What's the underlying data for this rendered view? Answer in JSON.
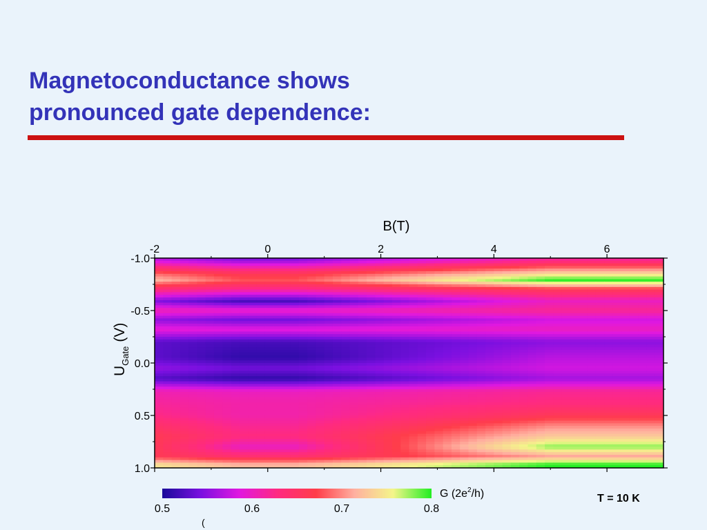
{
  "slide": {
    "title_line1": "Magnetoconductance shows",
    "title_line2": "pronounced gate dependence:",
    "annotation": "T = 10 K",
    "accent_color": "#cc1111",
    "title_color": "#3333b8"
  },
  "chart_data": {
    "type": "heatmap",
    "title": "",
    "xlabel": "B(T)",
    "ylabel_main": "U",
    "ylabel_sub": "Gate",
    "ylabel_unit": "(V)",
    "x_ticks": [
      -2,
      0,
      2,
      4,
      6
    ],
    "x_tick_labels": [
      "-2",
      "0",
      "2",
      "4",
      "6"
    ],
    "y_ticks": [
      -1.0,
      -0.5,
      0.0,
      0.5,
      1.0
    ],
    "y_tick_labels": [
      "-1.0",
      "-0.5",
      "0.0",
      "0.5",
      "1.0"
    ],
    "xlim": [
      -2,
      7
    ],
    "ylim": [
      -1.0,
      1.0
    ],
    "x_axis_position": "top",
    "y_inverted": true,
    "colorbar": {
      "label_main": "G (2e",
      "label_sup": "2",
      "label_end": "/h)",
      "range": [
        0.5,
        0.8
      ],
      "tick_values": [
        0.5,
        0.6,
        0.7,
        0.8
      ],
      "tick_labels": [
        "0.5",
        "0.6",
        "0.7",
        "0.8"
      ],
      "stray_mark": "(",
      "colors": [
        "#1a0a9a",
        "#7a10e0",
        "#e018e0",
        "#ff2a80",
        "#ff3d4a",
        "#ffb0a0",
        "#f4f58a",
        "#22ee22"
      ]
    },
    "bands": [
      {
        "y": -0.98,
        "g_low_field": 0.55,
        "g_high_field": 0.62
      },
      {
        "y": -0.85,
        "g_low_field": 0.66,
        "g_high_field": 0.74
      },
      {
        "y": -0.79,
        "g_low_field": 0.68,
        "g_high_field": 0.8
      },
      {
        "y": -0.7,
        "g_low_field": 0.62,
        "g_high_field": 0.66
      },
      {
        "y": -0.59,
        "g_low_field": 0.52,
        "g_high_field": 0.6
      },
      {
        "y": -0.5,
        "g_low_field": 0.6,
        "g_high_field": 0.62
      },
      {
        "y": -0.41,
        "g_low_field": 0.54,
        "g_high_field": 0.58
      },
      {
        "y": -0.32,
        "g_low_field": 0.59,
        "g_high_field": 0.6
      },
      {
        "y": -0.2,
        "g_low_field": 0.52,
        "g_high_field": 0.55
      },
      {
        "y": -0.05,
        "g_low_field": 0.51,
        "g_high_field": 0.57
      },
      {
        "y": 0.05,
        "g_low_field": 0.54,
        "g_high_field": 0.58
      },
      {
        "y": 0.15,
        "g_low_field": 0.51,
        "g_high_field": 0.56
      },
      {
        "y": 0.27,
        "g_low_field": 0.6,
        "g_high_field": 0.62
      },
      {
        "y": 0.38,
        "g_low_field": 0.61,
        "g_high_field": 0.63
      },
      {
        "y": 0.5,
        "g_low_field": 0.61,
        "g_high_field": 0.66
      },
      {
        "y": 0.6,
        "g_low_field": 0.62,
        "g_high_field": 0.7
      },
      {
        "y": 0.7,
        "g_low_field": 0.63,
        "g_high_field": 0.73
      },
      {
        "y": 0.8,
        "g_low_field": 0.6,
        "g_high_field": 0.78
      },
      {
        "y": 0.89,
        "g_low_field": 0.64,
        "g_high_field": 0.71
      },
      {
        "y": 0.97,
        "g_low_field": 0.72,
        "g_high_field": 0.8
      }
    ]
  }
}
